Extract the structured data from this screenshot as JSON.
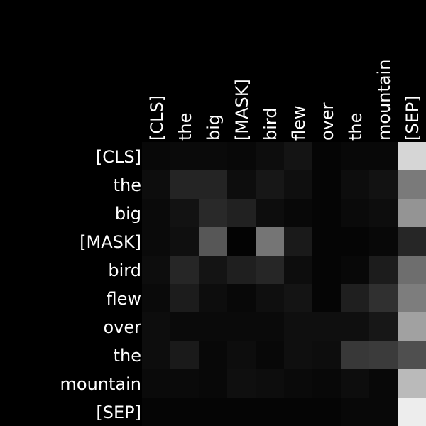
{
  "chart_data": {
    "type": "heatmap",
    "title": "",
    "xlabel": "",
    "ylabel": "",
    "colormap": "grayscale",
    "value_range": [
      0,
      1
    ],
    "background": "#000000",
    "text_color": "#ffffff",
    "x_tokens": [
      "[CLS]",
      "the",
      "big",
      "[MASK]",
      "bird",
      "flew",
      "over",
      "the",
      "mountain",
      "[SEP]"
    ],
    "y_tokens": [
      "[CLS]",
      "the",
      "big",
      "[MASK]",
      "bird",
      "flew",
      "over",
      "the",
      "mountain",
      "[SEP]"
    ],
    "values": [
      [
        0.03,
        0.04,
        0.04,
        0.03,
        0.05,
        0.08,
        0.02,
        0.03,
        0.03,
        0.84
      ],
      [
        0.05,
        0.14,
        0.14,
        0.05,
        0.09,
        0.06,
        0.02,
        0.05,
        0.07,
        0.48
      ],
      [
        0.04,
        0.07,
        0.16,
        0.13,
        0.05,
        0.03,
        0.02,
        0.04,
        0.05,
        0.58
      ],
      [
        0.04,
        0.06,
        0.34,
        0.01,
        0.46,
        0.1,
        0.02,
        0.02,
        0.03,
        0.15
      ],
      [
        0.05,
        0.15,
        0.08,
        0.12,
        0.15,
        0.05,
        0.02,
        0.03,
        0.11,
        0.43
      ],
      [
        0.04,
        0.11,
        0.05,
        0.03,
        0.06,
        0.08,
        0.02,
        0.12,
        0.19,
        0.49
      ],
      [
        0.05,
        0.04,
        0.04,
        0.04,
        0.04,
        0.06,
        0.06,
        0.06,
        0.09,
        0.63
      ],
      [
        0.05,
        0.1,
        0.03,
        0.05,
        0.03,
        0.06,
        0.05,
        0.22,
        0.23,
        0.31
      ],
      [
        0.04,
        0.04,
        0.03,
        0.06,
        0.05,
        0.04,
        0.03,
        0.05,
        0.03,
        0.73
      ],
      [
        0.02,
        0.02,
        0.02,
        0.02,
        0.02,
        0.02,
        0.02,
        0.03,
        0.03,
        0.93
      ]
    ]
  }
}
